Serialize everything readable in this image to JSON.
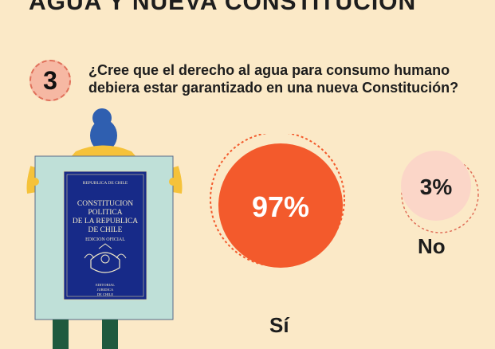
{
  "header": {
    "title": "AGUA Y NUEVA CONSTITUCIÓN",
    "question_number": "3",
    "question": "¿Cree que el derecho al agua para consumo humano debiera estar garantizado en una nueva Constitución?"
  },
  "book": {
    "top": "REPUBLICA DE CHILE",
    "title_lines": [
      "CONSTITUCION",
      "POLITICA",
      "DE LA REPUBLICA",
      "DE CHILE"
    ],
    "edition": "EDICION OFICIAL",
    "publisher_lines": [
      "EDITORIAL",
      "JURIDICA",
      "DE CHILE"
    ]
  },
  "chart_data": {
    "type": "pie",
    "categories": [
      "Sí",
      "No"
    ],
    "values": [
      97,
      3
    ],
    "value_labels": [
      "97%",
      "3%"
    ]
  },
  "colors": {
    "background": "#fbe9c7",
    "si": "#f35a2c",
    "no": "#fbd6c8",
    "badge": "#f6b8a3",
    "accent_dash": "#e0705a"
  }
}
